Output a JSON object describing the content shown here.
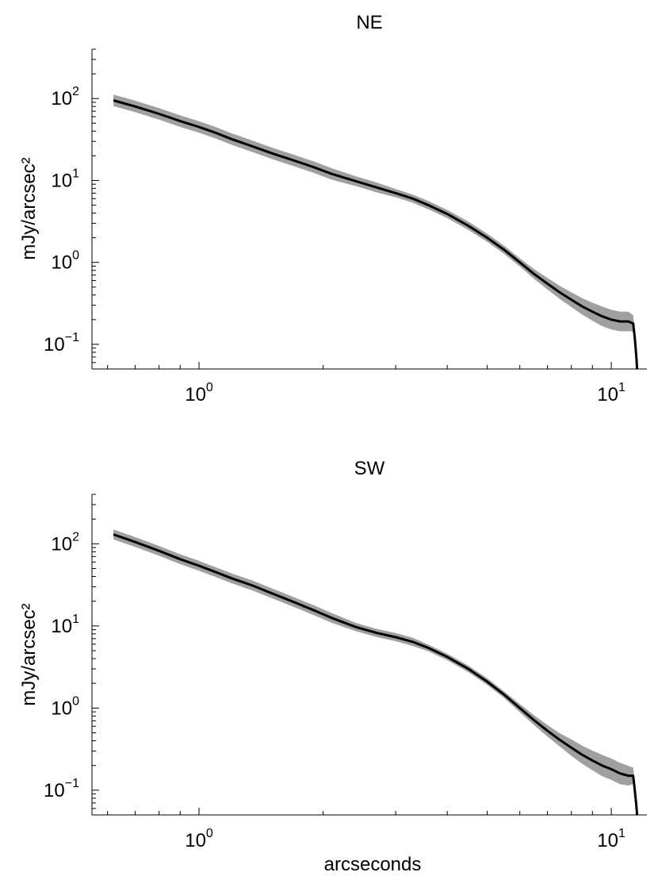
{
  "chart_data": [
    {
      "type": "line",
      "title": "NE",
      "xlabel": "",
      "ylabel": "mJy/arcsec²",
      "xscale": "log",
      "yscale": "log",
      "xlim": [
        0.55,
        12.2
      ],
      "ylim": [
        0.05,
        400
      ],
      "xticks": [
        {
          "value": 1,
          "base": "10",
          "exp": "0"
        },
        {
          "value": 10,
          "base": "10",
          "exp": "1"
        }
      ],
      "yticks": [
        {
          "value": 0.1,
          "base": "10",
          "exp": "−1"
        },
        {
          "value": 1,
          "base": "10",
          "exp": "0"
        },
        {
          "value": 10,
          "base": "10",
          "exp": "1"
        },
        {
          "value": 100,
          "base": "10",
          "exp": "2"
        }
      ],
      "series": [
        {
          "color": "#000000",
          "band_color": "#a0a0a0",
          "x": [
            0.62,
            0.7,
            0.8,
            0.9,
            1.0,
            1.1,
            1.2,
            1.35,
            1.5,
            1.7,
            1.9,
            2.1,
            2.4,
            2.7,
            3.0,
            3.3,
            3.6,
            4.0,
            4.5,
            5.0,
            5.5,
            6.0,
            6.5,
            7.0,
            7.5,
            8.0,
            8.5,
            9.0,
            9.5,
            10.0,
            10.5,
            11.0,
            11.3,
            11.4,
            11.5,
            11.55
          ],
          "y": [
            95,
            80,
            65,
            53,
            45,
            38,
            32,
            26,
            21.5,
            17.5,
            14.5,
            12,
            9.8,
            8.2,
            7.0,
            6.0,
            5.0,
            3.9,
            2.8,
            2.0,
            1.42,
            1.0,
            0.72,
            0.55,
            0.43,
            0.35,
            0.29,
            0.25,
            0.22,
            0.2,
            0.19,
            0.19,
            0.18,
            0.12,
            0.07,
            0.05
          ],
          "band": [
            0.07,
            0.07,
            0.07,
            0.07,
            0.07,
            0.07,
            0.07,
            0.07,
            0.07,
            0.07,
            0.07,
            0.07,
            0.06,
            0.06,
            0.05,
            0.05,
            0.05,
            0.05,
            0.05,
            0.05,
            0.05,
            0.05,
            0.06,
            0.07,
            0.08,
            0.09,
            0.1,
            0.11,
            0.12,
            0.12,
            0.12,
            0.12,
            0.1,
            0.1,
            0.1,
            0.1
          ]
        }
      ]
    },
    {
      "type": "line",
      "title": "SW",
      "xlabel": "arcseconds",
      "ylabel": "mJy/arcsec²",
      "xscale": "log",
      "yscale": "log",
      "xlim": [
        0.55,
        12.2
      ],
      "ylim": [
        0.05,
        400
      ],
      "xticks": [
        {
          "value": 1,
          "base": "10",
          "exp": "0"
        },
        {
          "value": 10,
          "base": "10",
          "exp": "1"
        }
      ],
      "yticks": [
        {
          "value": 0.1,
          "base": "10",
          "exp": "−1"
        },
        {
          "value": 1,
          "base": "10",
          "exp": "0"
        },
        {
          "value": 10,
          "base": "10",
          "exp": "1"
        },
        {
          "value": 100,
          "base": "10",
          "exp": "2"
        }
      ],
      "series": [
        {
          "color": "#000000",
          "band_color": "#a0a0a0",
          "x": [
            0.62,
            0.7,
            0.8,
            0.9,
            1.0,
            1.1,
            1.2,
            1.35,
            1.5,
            1.7,
            1.9,
            2.1,
            2.4,
            2.7,
            3.0,
            3.3,
            3.6,
            4.0,
            4.5,
            5.0,
            5.5,
            6.0,
            6.5,
            7.0,
            7.5,
            8.0,
            8.5,
            9.0,
            9.5,
            10.0,
            10.5,
            11.0,
            11.3,
            11.4,
            11.5,
            11.55
          ],
          "y": [
            130,
            105,
            82,
            65,
            54,
            45,
            38,
            31,
            25,
            19.5,
            15.5,
            12.5,
            9.7,
            8.2,
            7.3,
            6.4,
            5.4,
            4.2,
            3.0,
            2.1,
            1.45,
            1.0,
            0.71,
            0.53,
            0.41,
            0.33,
            0.27,
            0.23,
            0.2,
            0.18,
            0.16,
            0.15,
            0.15,
            0.1,
            0.065,
            0.05
          ],
          "band": [
            0.06,
            0.06,
            0.06,
            0.06,
            0.06,
            0.06,
            0.06,
            0.06,
            0.06,
            0.06,
            0.06,
            0.06,
            0.05,
            0.05,
            0.05,
            0.05,
            0.04,
            0.04,
            0.04,
            0.04,
            0.04,
            0.05,
            0.06,
            0.07,
            0.08,
            0.1,
            0.11,
            0.12,
            0.13,
            0.13,
            0.13,
            0.12,
            0.1,
            0.1,
            0.1,
            0.1
          ]
        }
      ]
    }
  ]
}
